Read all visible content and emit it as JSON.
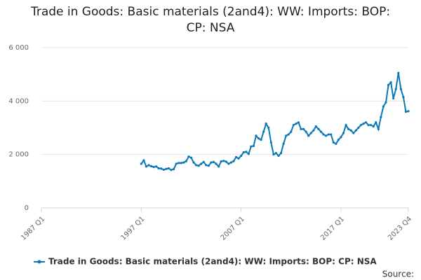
{
  "chart_data": {
    "type": "line",
    "title": "Trade in Goods: Basic materials (2and4): WW: Imports: BOP: CP: NSA",
    "source": "Source:",
    "categories": [
      "1987 Q1",
      null,
      null,
      null,
      null,
      null,
      null,
      null,
      null,
      null,
      null,
      null,
      null,
      null,
      null,
      null,
      null,
      null,
      null,
      null,
      null,
      null,
      null,
      null,
      null,
      null,
      null,
      null,
      null,
      null,
      null,
      null,
      null,
      null,
      null,
      null,
      null,
      null,
      null,
      null,
      "1997 Q1",
      null,
      null,
      null,
      null,
      null,
      null,
      null,
      null,
      null,
      null,
      null,
      null,
      null,
      null,
      null,
      null,
      null,
      null,
      null,
      null,
      null,
      null,
      null,
      null,
      null,
      null,
      null,
      null,
      null,
      null,
      null,
      null,
      null,
      null,
      null,
      null,
      null,
      null,
      null,
      "2007 Q1",
      null,
      null,
      null,
      null,
      null,
      null,
      null,
      null,
      null,
      null,
      null,
      null,
      null,
      null,
      null,
      null,
      null,
      null,
      null,
      null,
      null,
      null,
      null,
      null,
      null,
      null,
      null,
      null,
      null,
      null,
      null,
      null,
      null,
      null,
      null,
      null,
      null,
      null,
      null,
      "2017 Q1",
      null,
      null,
      null,
      null,
      null,
      null,
      null,
      null,
      null,
      null,
      null,
      null,
      null,
      null,
      null,
      null,
      null,
      null,
      null,
      null,
      null,
      null,
      null,
      null,
      null,
      null,
      "2023 Q4"
    ],
    "series": [
      {
        "name": "Trade in Goods: Basic materials (2and4): WW: Imports: BOP: CP: NSA",
        "color": "#0a78b4",
        "values": [
          null,
          null,
          null,
          null,
          null,
          null,
          null,
          null,
          null,
          null,
          null,
          null,
          null,
          null,
          null,
          null,
          null,
          null,
          null,
          null,
          null,
          null,
          null,
          null,
          null,
          null,
          null,
          null,
          null,
          null,
          null,
          null,
          null,
          null,
          null,
          null,
          null,
          null,
          null,
          null,
          1650,
          1780,
          1550,
          1600,
          1560,
          1530,
          1550,
          1480,
          1470,
          1430,
          1460,
          1480,
          1420,
          1450,
          1650,
          1680,
          1680,
          1700,
          1750,
          1920,
          1880,
          1700,
          1600,
          1580,
          1650,
          1720,
          1600,
          1580,
          1700,
          1720,
          1650,
          1550,
          1740,
          1760,
          1730,
          1650,
          1700,
          1750,
          1900,
          1850,
          1950,
          2080,
          2100,
          2020,
          2300,
          2320,
          2700,
          2600,
          2550,
          2850,
          3150,
          3000,
          2450,
          2000,
          2050,
          1950,
          2050,
          2400,
          2700,
          2750,
          2850,
          3100,
          3150,
          3200,
          2950,
          2950,
          2850,
          2700,
          2800,
          2900,
          3050,
          2950,
          2850,
          2750,
          2700,
          2750,
          2750,
          2450,
          2400,
          2550,
          2650,
          2800,
          3100,
          2950,
          2900,
          2800,
          2900,
          3000,
          3100,
          3150,
          3200,
          3100,
          3100,
          3050,
          3200,
          2950,
          3400,
          3800,
          3950,
          4600,
          4700,
          4100,
          4450,
          5050,
          4450,
          4150,
          3600,
          3620
        ]
      }
    ],
    "ylim": [
      0,
      6000
    ],
    "yticks": [
      0,
      {
        "value": 2000,
        "label": "2 000"
      },
      {
        "value": 4000,
        "label": "4 000"
      },
      {
        "value": 6000,
        "label": "6 000"
      }
    ],
    "grid": true,
    "legend": "bottom"
  }
}
